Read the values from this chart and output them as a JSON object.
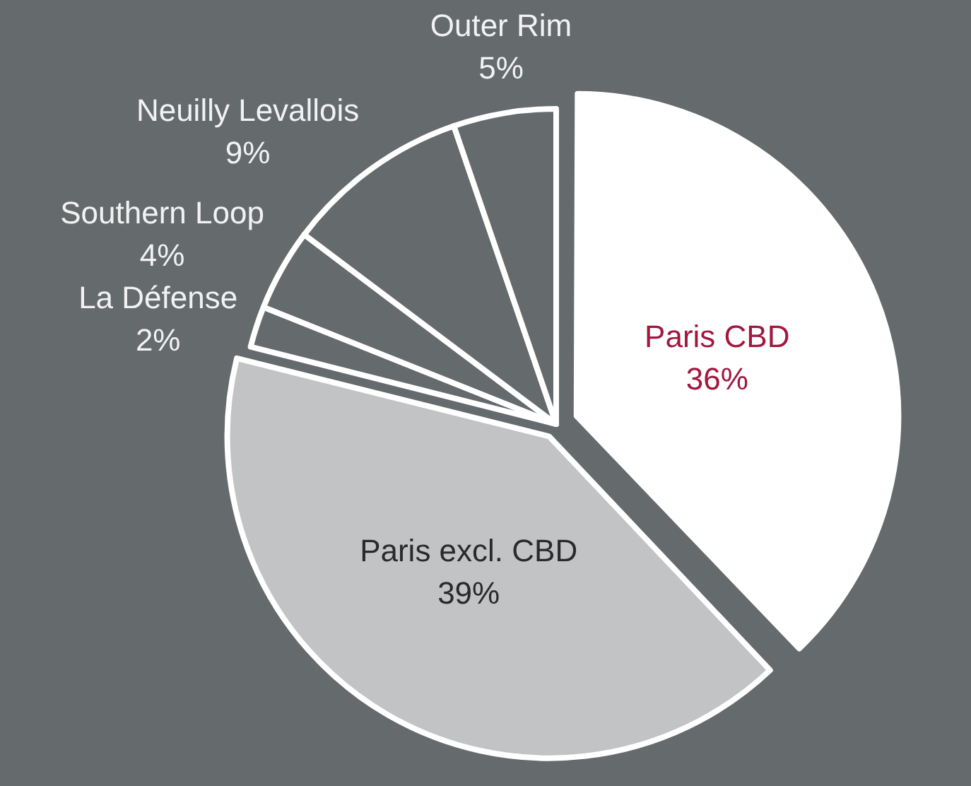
{
  "chart_data": {
    "type": "pie",
    "categories": [
      "Paris CBD",
      "Paris excl. CBD",
      "La Défense",
      "Southern Loop",
      "Neuilly Levallois",
      "Outer Rim"
    ],
    "values": [
      36,
      39,
      2,
      4,
      9,
      5
    ],
    "value_labels": [
      "36%",
      "39%",
      "2%",
      "4%",
      "9%",
      "5%"
    ],
    "colors": [
      "#ffffff",
      "#c1c3c4",
      "#656a6d",
      "#656a6d",
      "#656a6d",
      "#656a6d"
    ],
    "legend": false
  }
}
